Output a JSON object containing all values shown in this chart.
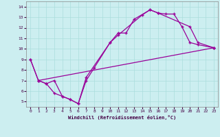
{
  "xlabel": "Windchill (Refroidissement éolien,°C)",
  "xlim": [
    -0.5,
    23.5
  ],
  "ylim": [
    4.5,
    14.5
  ],
  "xticks": [
    0,
    1,
    2,
    3,
    4,
    5,
    6,
    7,
    8,
    9,
    10,
    11,
    12,
    13,
    14,
    15,
    16,
    17,
    18,
    19,
    20,
    21,
    22,
    23
  ],
  "yticks": [
    5,
    6,
    7,
    8,
    9,
    10,
    11,
    12,
    13,
    14
  ],
  "background_color": "#cceef0",
  "grid_color": "#aadddd",
  "line_color": "#990099",
  "line1_x": [
    0,
    1,
    2,
    3,
    4,
    5,
    6,
    7,
    8,
    10,
    11,
    14,
    15,
    16,
    17,
    18,
    19,
    20,
    21,
    23
  ],
  "line1_y": [
    9,
    7,
    6.7,
    5.8,
    5.5,
    5.2,
    4.8,
    7.0,
    8.2,
    10.6,
    11.3,
    13.2,
    13.7,
    13.4,
    13.3,
    13.3,
    12.1,
    10.6,
    10.4,
    10.1
  ],
  "line2_x": [
    0,
    1,
    2,
    3,
    4,
    5,
    6,
    7,
    10,
    11,
    12,
    13,
    15,
    16,
    20,
    21,
    23
  ],
  "line2_y": [
    9,
    7.0,
    6.7,
    7.0,
    5.5,
    5.2,
    4.8,
    7.3,
    10.6,
    11.5,
    11.5,
    12.8,
    13.7,
    13.4,
    12.1,
    10.6,
    10.1
  ],
  "line3_x": [
    1,
    23
  ],
  "line3_y": [
    7.0,
    10.1
  ]
}
